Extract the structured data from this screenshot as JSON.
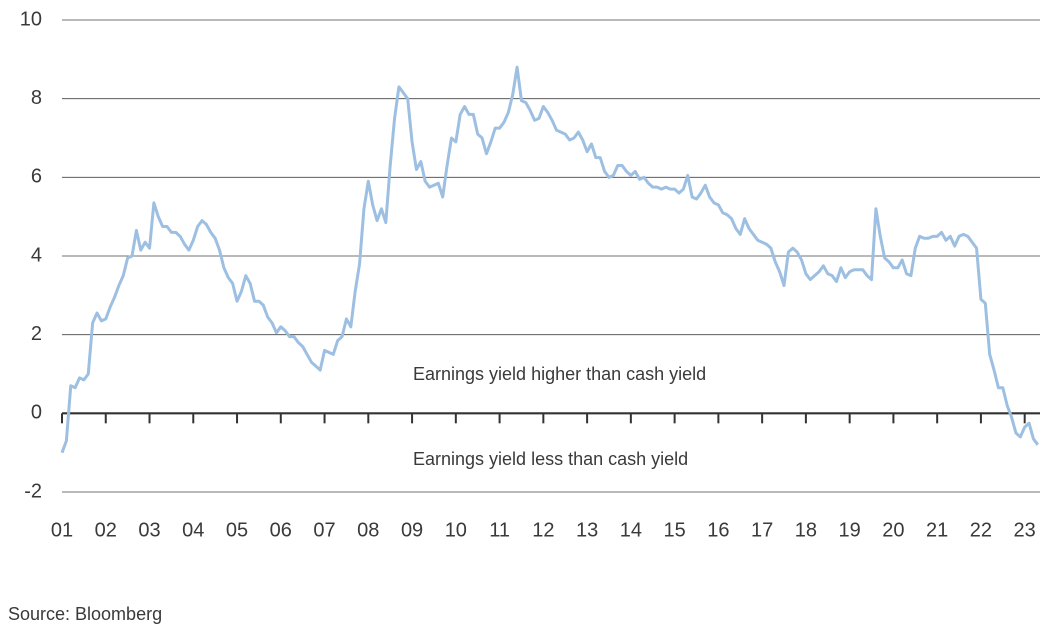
{
  "chart_data": {
    "type": "line",
    "annotations": [
      "Earnings yield higher than cash yield",
      "Earnings yield less than cash yield"
    ],
    "source": "Source: Bloomberg",
    "xlim": [
      1,
      23.35
    ],
    "ylim": [
      -2,
      10
    ],
    "yticks": [
      -2,
      0,
      2,
      4,
      6,
      8,
      10
    ],
    "xticks": [
      {
        "value": 1,
        "label": "01"
      },
      {
        "value": 2,
        "label": "02"
      },
      {
        "value": 3,
        "label": "03"
      },
      {
        "value": 4,
        "label": "04"
      },
      {
        "value": 5,
        "label": "05"
      },
      {
        "value": 6,
        "label": "06"
      },
      {
        "value": 7,
        "label": "07"
      },
      {
        "value": 8,
        "label": "08"
      },
      {
        "value": 9,
        "label": "09"
      },
      {
        "value": 10,
        "label": "10"
      },
      {
        "value": 11,
        "label": "11"
      },
      {
        "value": 12,
        "label": "12"
      },
      {
        "value": 13,
        "label": "13"
      },
      {
        "value": 14,
        "label": "14"
      },
      {
        "value": 15,
        "label": "15"
      },
      {
        "value": 16,
        "label": "16"
      },
      {
        "value": 17,
        "label": "17"
      },
      {
        "value": 18,
        "label": "18"
      },
      {
        "value": 19,
        "label": "19"
      },
      {
        "value": 20,
        "label": "20"
      },
      {
        "value": 21,
        "label": "21"
      },
      {
        "value": 22,
        "label": "22"
      },
      {
        "value": 23,
        "label": "23"
      }
    ],
    "grid": true,
    "x": [
      1.0,
      1.1,
      1.2,
      1.3,
      1.4,
      1.5,
      1.6,
      1.7,
      1.8,
      1.9,
      2.0,
      2.1,
      2.2,
      2.3,
      2.4,
      2.5,
      2.6,
      2.7,
      2.8,
      2.9,
      3.0,
      3.1,
      3.2,
      3.3,
      3.4,
      3.5,
      3.6,
      3.7,
      3.8,
      3.9,
      4.0,
      4.1,
      4.2,
      4.3,
      4.4,
      4.5,
      4.6,
      4.7,
      4.8,
      4.9,
      5.0,
      5.1,
      5.2,
      5.3,
      5.4,
      5.5,
      5.6,
      5.7,
      5.8,
      5.9,
      6.0,
      6.1,
      6.2,
      6.3,
      6.4,
      6.5,
      6.6,
      6.7,
      6.8,
      6.9,
      7.0,
      7.1,
      7.2,
      7.3,
      7.4,
      7.5,
      7.6,
      7.7,
      7.8,
      7.9,
      8.0,
      8.1,
      8.2,
      8.3,
      8.4,
      8.5,
      8.6,
      8.7,
      8.8,
      8.9,
      9.0,
      9.1,
      9.2,
      9.3,
      9.4,
      9.5,
      9.6,
      9.7,
      9.8,
      9.9,
      10.0,
      10.1,
      10.2,
      10.3,
      10.4,
      10.5,
      10.6,
      10.7,
      10.8,
      10.9,
      11.0,
      11.1,
      11.2,
      11.3,
      11.4,
      11.5,
      11.6,
      11.7,
      11.8,
      11.9,
      12.0,
      12.1,
      12.2,
      12.3,
      12.4,
      12.5,
      12.6,
      12.7,
      12.8,
      12.9,
      13.0,
      13.1,
      13.2,
      13.3,
      13.4,
      13.5,
      13.6,
      13.7,
      13.8,
      13.9,
      14.0,
      14.1,
      14.2,
      14.3,
      14.4,
      14.5,
      14.6,
      14.7,
      14.8,
      14.9,
      15.0,
      15.1,
      15.2,
      15.3,
      15.4,
      15.5,
      15.6,
      15.7,
      15.8,
      15.9,
      16.0,
      16.1,
      16.2,
      16.3,
      16.4,
      16.5,
      16.6,
      16.7,
      16.8,
      16.9,
      17.0,
      17.1,
      17.2,
      17.3,
      17.4,
      17.5,
      17.6,
      17.7,
      17.8,
      17.9,
      18.0,
      18.1,
      18.2,
      18.3,
      18.4,
      18.5,
      18.6,
      18.7,
      18.8,
      18.9,
      19.0,
      19.1,
      19.2,
      19.3,
      19.4,
      19.5,
      19.6,
      19.7,
      19.8,
      19.9,
      20.0,
      20.1,
      20.2,
      20.3,
      20.4,
      20.5,
      20.6,
      20.7,
      20.8,
      20.9,
      21.0,
      21.1,
      21.2,
      21.3,
      21.4,
      21.5,
      21.6,
      21.7,
      21.8,
      21.9,
      22.0,
      22.1,
      22.2,
      22.3,
      22.4,
      22.5,
      22.6,
      22.7,
      22.8,
      22.9,
      23.0,
      23.1,
      23.2,
      23.3
    ],
    "series": [
      {
        "color": "#9dbfe2",
        "values": [
          -1.0,
          -0.7,
          0.7,
          0.65,
          0.9,
          0.85,
          1.0,
          2.3,
          2.55,
          2.35,
          2.4,
          2.7,
          2.95,
          3.25,
          3.5,
          3.95,
          4.0,
          4.65,
          4.15,
          4.35,
          4.2,
          5.35,
          5.0,
          4.75,
          4.75,
          4.6,
          4.6,
          4.5,
          4.3,
          4.15,
          4.4,
          4.75,
          4.9,
          4.8,
          4.6,
          4.45,
          4.15,
          3.7,
          3.45,
          3.3,
          2.85,
          3.1,
          3.5,
          3.3,
          2.85,
          2.85,
          2.75,
          2.45,
          2.3,
          2.05,
          2.2,
          2.1,
          1.95,
          1.95,
          1.8,
          1.7,
          1.5,
          1.3,
          1.2,
          1.1,
          1.6,
          1.55,
          1.5,
          1.85,
          1.95,
          2.4,
          2.2,
          3.1,
          3.8,
          5.2,
          5.9,
          5.3,
          4.9,
          5.2,
          4.85,
          6.3,
          7.5,
          8.3,
          8.15,
          8.0,
          6.9,
          6.2,
          6.4,
          5.9,
          5.75,
          5.8,
          5.85,
          5.5,
          6.3,
          7.0,
          6.9,
          7.6,
          7.8,
          7.6,
          7.6,
          7.1,
          7.0,
          6.6,
          6.9,
          7.25,
          7.25,
          7.4,
          7.65,
          8.1,
          8.8,
          7.95,
          7.9,
          7.7,
          7.45,
          7.5,
          7.8,
          7.65,
          7.45,
          7.2,
          7.15,
          7.1,
          6.95,
          7.0,
          7.15,
          6.95,
          6.65,
          6.85,
          6.5,
          6.5,
          6.15,
          6.0,
          6.05,
          6.3,
          6.3,
          6.15,
          6.05,
          6.15,
          5.95,
          6.0,
          5.85,
          5.75,
          5.75,
          5.7,
          5.75,
          5.7,
          5.7,
          5.6,
          5.7,
          6.05,
          5.5,
          5.45,
          5.6,
          5.8,
          5.5,
          5.35,
          5.3,
          5.1,
          5.05,
          4.95,
          4.7,
          4.55,
          4.95,
          4.7,
          4.55,
          4.4,
          4.35,
          4.3,
          4.2,
          3.85,
          3.6,
          3.25,
          4.1,
          4.2,
          4.1,
          3.9,
          3.55,
          3.4,
          3.5,
          3.6,
          3.75,
          3.55,
          3.5,
          3.35,
          3.7,
          3.45,
          3.6,
          3.65,
          3.65,
          3.65,
          3.5,
          3.4,
          5.2,
          4.5,
          3.95,
          3.85,
          3.7,
          3.7,
          3.9,
          3.55,
          3.5,
          4.2,
          4.5,
          4.45,
          4.45,
          4.5,
          4.5,
          4.6,
          4.4,
          4.5,
          4.25,
          4.5,
          4.55,
          4.5,
          4.35,
          4.2,
          2.9,
          2.8,
          1.5,
          1.1,
          0.65,
          0.65,
          0.2,
          -0.1,
          -0.5,
          -0.6,
          -0.35,
          -0.25,
          -0.65,
          -0.8
        ]
      }
    ]
  }
}
